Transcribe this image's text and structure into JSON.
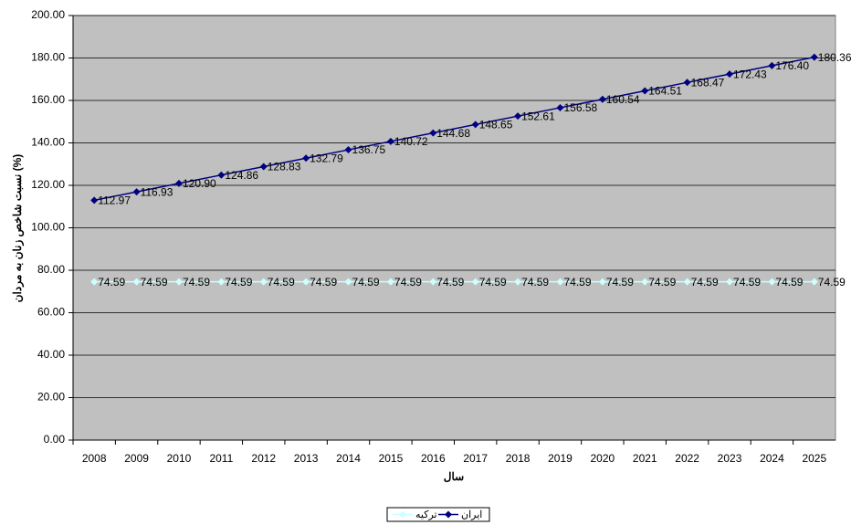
{
  "chart_data": {
    "type": "line",
    "y_label": "نسبت شاخص زنان به مردان (%)",
    "x_label": "سال",
    "categories": [
      "2008",
      "2009",
      "2010",
      "2011",
      "2012",
      "2013",
      "2014",
      "2015",
      "2016",
      "2017",
      "2018",
      "2019",
      "2020",
      "2021",
      "2022",
      "2023",
      "2024",
      "2025"
    ],
    "series": [
      {
        "name": "ایران",
        "color": "#000080",
        "marker": "diamond",
        "values": [
          112.97,
          116.93,
          120.9,
          124.86,
          128.83,
          132.79,
          136.75,
          140.72,
          144.68,
          148.65,
          152.61,
          156.58,
          160.54,
          164.51,
          168.47,
          172.43,
          176.4,
          180.36
        ],
        "value_labels": [
          "112.97",
          "116.93",
          "120.90",
          "124.86",
          "128.83",
          "132.79",
          "136.75",
          "140.72",
          "144.68",
          "148.65",
          "152.61",
          "156.58",
          "160.54",
          "164.51",
          "168.47",
          "172.43",
          "176.40",
          "180.36"
        ]
      },
      {
        "name": "ترکیه",
        "color": "#ccffff",
        "marker": "diamond",
        "values": [
          74.59,
          74.59,
          74.59,
          74.59,
          74.59,
          74.59,
          74.59,
          74.59,
          74.59,
          74.59,
          74.59,
          74.59,
          74.59,
          74.59,
          74.59,
          74.59,
          74.59,
          74.59
        ],
        "value_labels": [
          "74.59",
          "74.59",
          "74.59",
          "74.59",
          "74.59",
          "74.59",
          "74.59",
          "74.59",
          "74.59",
          "74.59",
          "74.59",
          "74.59",
          "74.59",
          "74.59",
          "74.59",
          "74.59",
          "74.59",
          "74.59"
        ]
      }
    ],
    "ylim": [
      0,
      200
    ],
    "yticks": [
      {
        "value": 0,
        "label": "0.00"
      },
      {
        "value": 20,
        "label": "20.00"
      },
      {
        "value": 40,
        "label": "40.00"
      },
      {
        "value": 60,
        "label": "60.00"
      },
      {
        "value": 80,
        "label": "80.00"
      },
      {
        "value": 100,
        "label": "100.00"
      },
      {
        "value": 120,
        "label": "120.00"
      },
      {
        "value": 140,
        "label": "140.00"
      },
      {
        "value": 160,
        "label": "160.00"
      },
      {
        "value": 180,
        "label": "180.00"
      },
      {
        "value": 200,
        "label": "200.00"
      }
    ],
    "grid": true,
    "plot_background": "#c0c0c0",
    "legend": "bottom"
  }
}
